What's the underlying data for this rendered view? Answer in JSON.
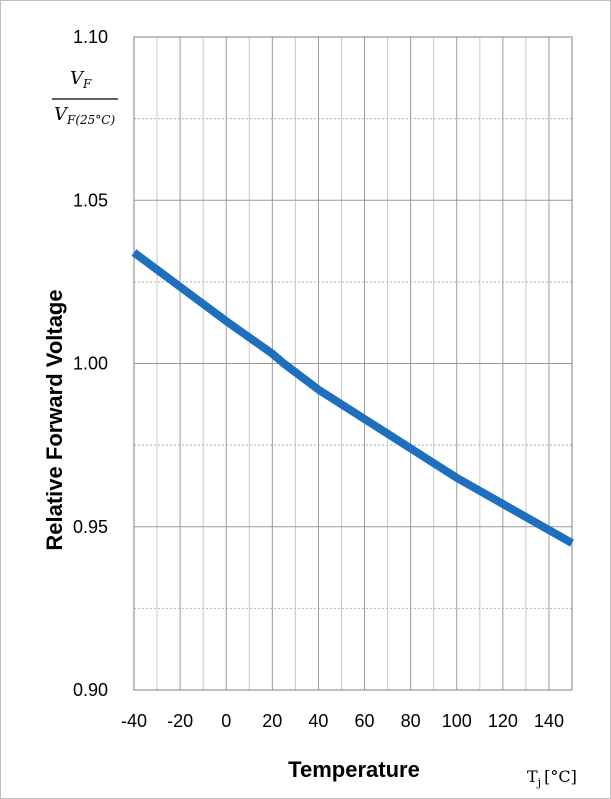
{
  "chart_data": {
    "type": "line",
    "xlabel": "Temperature",
    "xunit_symbol": "T",
    "xunit_sub": "j",
    "xunit_bracket": "[°C]",
    "ylabel": "Relative Forward Voltage",
    "y_fraction": {
      "numerator": "V",
      "numerator_sub": "F",
      "denominator": "V",
      "denominator_sub": "F(25°C)"
    },
    "xlim": [
      -40,
      150
    ],
    "ylim": [
      0.9,
      1.1
    ],
    "xticks": [
      -40,
      -20,
      0,
      20,
      40,
      60,
      80,
      100,
      120,
      140
    ],
    "xtick_labels": [
      "-40",
      "-20",
      "0",
      "20",
      "40",
      "60",
      "80",
      "100",
      "120",
      "140"
    ],
    "yticks": [
      0.9,
      0.95,
      1.0,
      1.05,
      1.1
    ],
    "ytick_labels": [
      "0.90",
      "0.95",
      "1.00",
      "1.05",
      "1.10"
    ],
    "grid": true,
    "series": [
      {
        "color": "#1f6fbf",
        "x": [
          -40,
          -20,
          0,
          20,
          25,
          40,
          60,
          80,
          100,
          120,
          140,
          150
        ],
        "y": [
          1.034,
          1.0235,
          1.013,
          1.003,
          1.0,
          0.992,
          0.983,
          0.974,
          0.965,
          0.957,
          0.949,
          0.945
        ]
      }
    ]
  }
}
